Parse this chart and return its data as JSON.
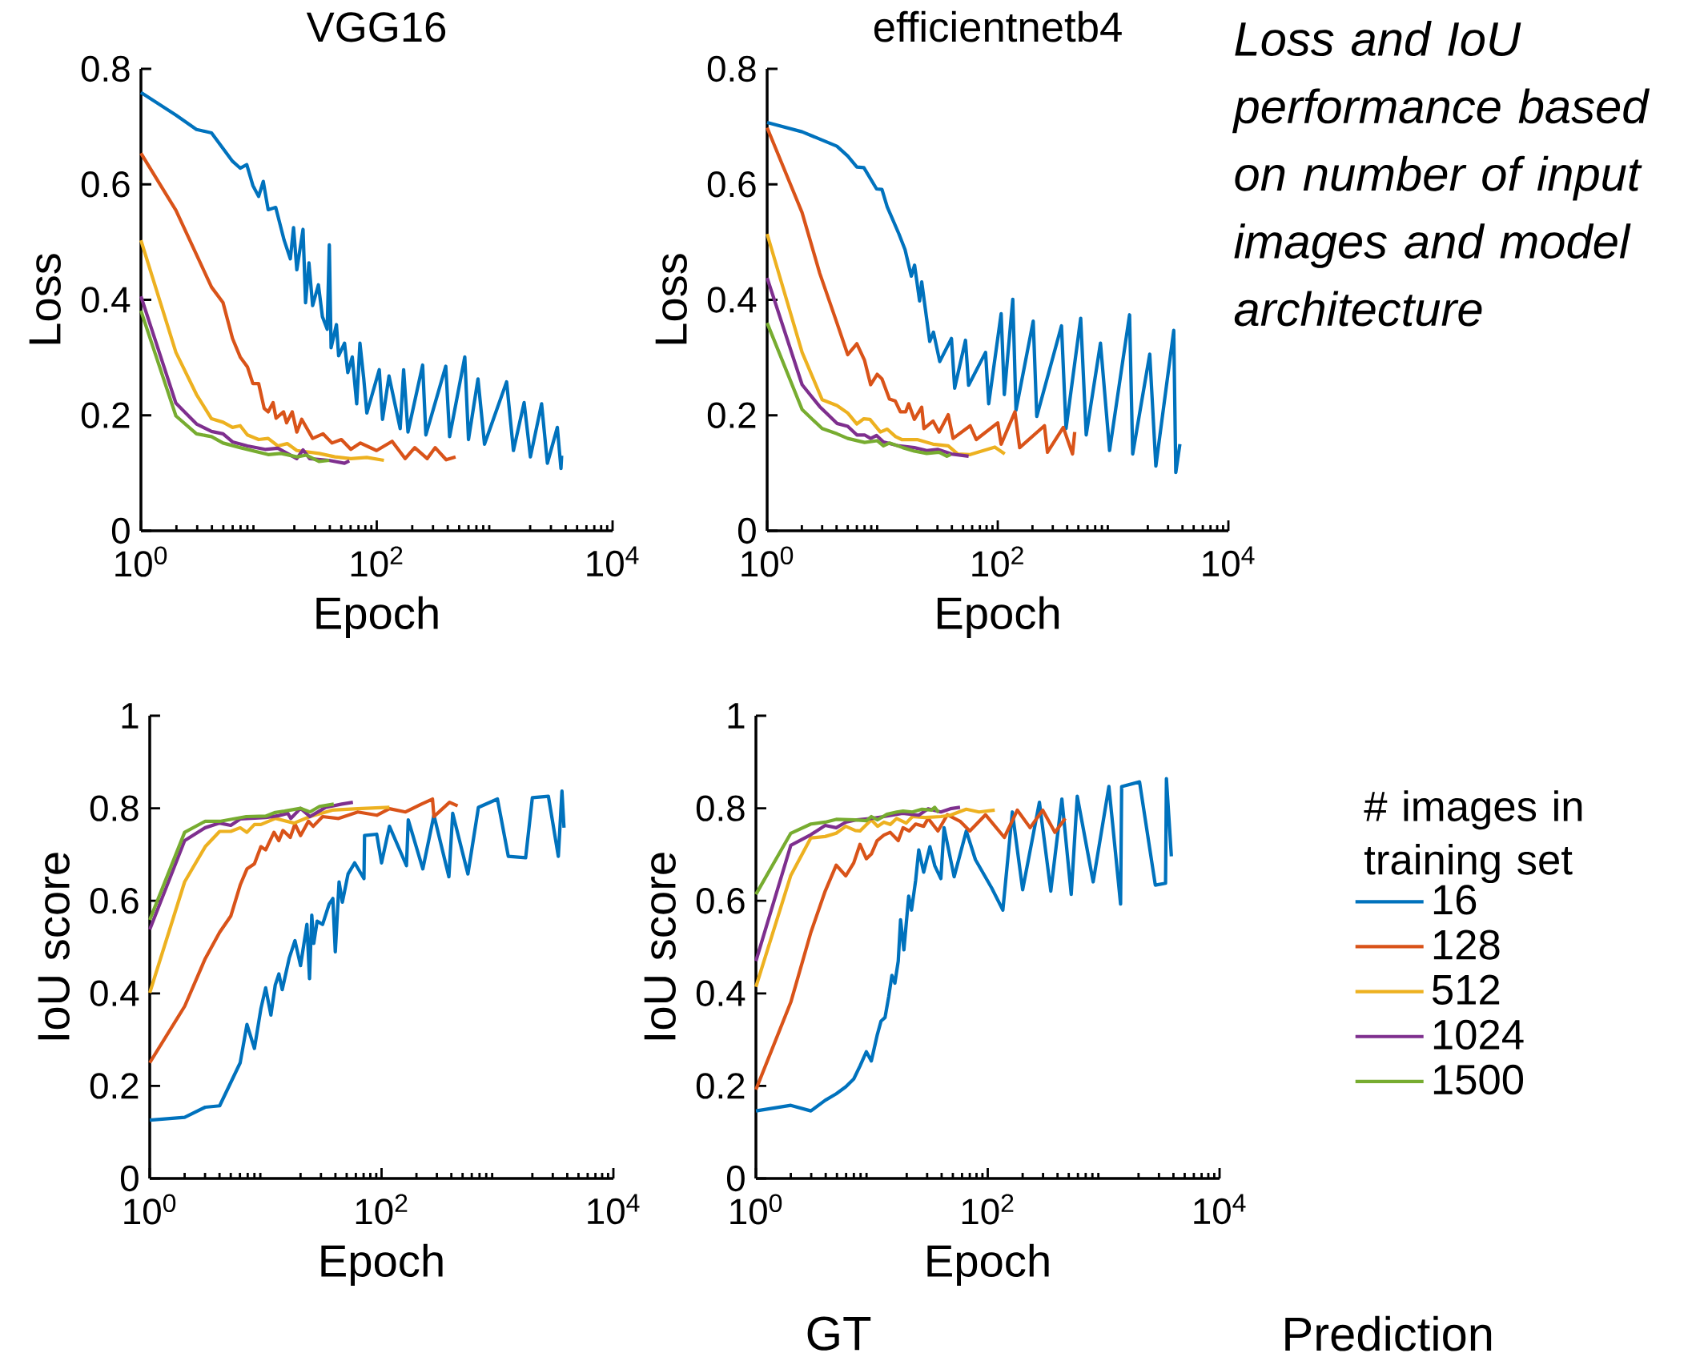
{
  "chart_data": [
    {
      "type": "line",
      "title": "VGG16",
      "xlabel": "Epoch",
      "ylabel": "Loss",
      "log": "x",
      "xlim": [
        1,
        10000
      ],
      "ylim": [
        0,
        0.8
      ],
      "xticks": [
        {
          "value": 1,
          "label": "10$^{0}$"
        },
        {
          "value": 100,
          "label": "10$^{2}$"
        },
        {
          "value": 10000,
          "label": "10$^{4}$"
        }
      ],
      "yticks": [
        0,
        0.2,
        0.4,
        0.6,
        0.8
      ],
      "series": [
        {
          "color": "#0072bd",
          "x": [
            1,
            1.98,
            2.96,
            3.97,
            5.98,
            6.95,
            7.9,
            8.9,
            9.96,
            10.9,
            12,
            13.9,
            16.4,
            18.5,
            19.7,
            21,
            23.7,
            24.9,
            26.6,
            28.6,
            32,
            34.6,
            38,
            39.6,
            41,
            45.5,
            47.5,
            53.3,
            56.8,
            62,
            67.6,
            72,
            77.6,
            82.4,
            105,
            112,
            127,
            158,
            169,
            184,
            245,
            261,
            385,
            415,
            558,
            600,
            722,
            820,
            1263,
            1443,
            1777,
            2010,
            2500,
            2800,
            3400,
            3650,
            3700
          ],
          "values": [
            0.759,
            0.72,
            0.695,
            0.689,
            0.64,
            0.628,
            0.634,
            0.598,
            0.579,
            0.605,
            0.556,
            0.56,
            0.503,
            0.471,
            0.525,
            0.452,
            0.522,
            0.395,
            0.464,
            0.39,
            0.426,
            0.371,
            0.349,
            0.495,
            0.317,
            0.357,
            0.303,
            0.325,
            0.274,
            0.301,
            0.22,
            0.325,
            0.263,
            0.204,
            0.279,
            0.193,
            0.268,
            0.177,
            0.279,
            0.171,
            0.287,
            0.166,
            0.285,
            0.163,
            0.301,
            0.158,
            0.263,
            0.15,
            0.258,
            0.139,
            0.222,
            0.128,
            0.22,
            0.117,
            0.179,
            0.108,
            0.13
          ]
        },
        {
          "color": "#d95319",
          "x": [
            1,
            1.98,
            3.97,
            4.97,
            5.98,
            6.95,
            8,
            8.9,
            9.96,
            11.1,
            12,
            13.2,
            14,
            16.2,
            17.2,
            19.2,
            21,
            23.1,
            28.6,
            35,
            41.7,
            50.1,
            60.3,
            72.7,
            99.6,
            135,
            174,
            210,
            268,
            313,
            388,
            466
          ],
          "values": [
            0.654,
            0.555,
            0.422,
            0.395,
            0.333,
            0.301,
            0.284,
            0.255,
            0.255,
            0.212,
            0.206,
            0.222,
            0.195,
            0.206,
            0.187,
            0.206,
            0.171,
            0.193,
            0.16,
            0.168,
            0.152,
            0.158,
            0.141,
            0.152,
            0.139,
            0.155,
            0.125,
            0.144,
            0.125,
            0.144,
            0.123,
            0.128
          ]
        },
        {
          "color": "#edb120",
          "x": [
            1,
            1.98,
            2.96,
            3.97,
            4.97,
            5.98,
            6.95,
            8,
            9.96,
            12,
            14.5,
            17.4,
            21,
            32.4,
            44.2,
            60.3,
            82.4,
            115
          ],
          "values": [
            0.503,
            0.309,
            0.236,
            0.194,
            0.188,
            0.179,
            0.182,
            0.166,
            0.158,
            0.16,
            0.147,
            0.151,
            0.139,
            0.134,
            0.128,
            0.125,
            0.127,
            0.122
          ]
        },
        {
          "color": "#7e2f8e",
          "x": [
            1,
            1.98,
            2.96,
            3.97,
            4.97,
            5.98,
            8,
            11.3,
            14.5,
            21,
            23.7,
            27,
            39.2,
            53.3,
            58.5
          ],
          "values": [
            0.406,
            0.221,
            0.185,
            0.172,
            0.168,
            0.154,
            0.147,
            0.141,
            0.143,
            0.125,
            0.14,
            0.125,
            0.122,
            0.117,
            0.121
          ]
        },
        {
          "color": "#77ac30",
          "x": [
            1,
            1.98,
            2.96,
            3.97,
            4.97,
            6.95,
            12,
            15.4,
            21,
            25.3,
            32.4,
            39.6
          ],
          "values": [
            0.381,
            0.199,
            0.168,
            0.163,
            0.152,
            0.144,
            0.132,
            0.134,
            0.128,
            0.131,
            0.12,
            0.122
          ]
        }
      ]
    },
    {
      "type": "line",
      "title": "efficientnetb4",
      "xlabel": "Epoch",
      "ylabel": "Loss",
      "log": "x",
      "xlim": [
        1,
        10000
      ],
      "ylim": [
        0,
        0.8
      ],
      "xticks": [
        {
          "value": 1,
          "label": "10$^{0}$"
        },
        {
          "value": 100,
          "label": "10$^{2}$"
        },
        {
          "value": 10000,
          "label": "10$^{4}$"
        }
      ],
      "yticks": [
        0,
        0.2,
        0.4,
        0.6,
        0.8
      ],
      "annotations": [
        "Loss and IoU performance based on number of input images and model architecture"
      ],
      "series": [
        {
          "color": "#0072bd",
          "x": [
            1,
            2.01,
            4.03,
            5,
            6,
            6.9,
            8.9,
            9.9,
            11,
            13.9,
            15.7,
            17.8,
            19,
            21,
            21.9,
            25.7,
            27.7,
            31.4,
            39.7,
            42.3,
            52.5,
            55.9,
            78.4,
            83.5,
            107,
            114,
            135,
            144,
            203,
            218,
            357,
            391,
            524,
            585,
            778,
            933,
            1390,
            1480,
            2080,
            2350,
            3360,
            3500,
            3800
          ],
          "values": [
            0.707,
            0.691,
            0.666,
            0.649,
            0.63,
            0.629,
            0.592,
            0.591,
            0.561,
            0.514,
            0.487,
            0.441,
            0.46,
            0.398,
            0.431,
            0.328,
            0.344,
            0.293,
            0.333,
            0.247,
            0.33,
            0.252,
            0.309,
            0.22,
            0.376,
            0.236,
            0.401,
            0.209,
            0.363,
            0.198,
            0.355,
            0.177,
            0.368,
            0.166,
            0.325,
            0.139,
            0.374,
            0.133,
            0.306,
            0.112,
            0.347,
            0.101,
            0.15
          ]
        },
        {
          "color": "#d95319",
          "x": [
            1,
            2.01,
            2.86,
            4.03,
            5,
            6,
            7,
            7.9,
            9,
            9.9,
            11.5,
            12.9,
            14.3,
            15.9,
            16.9,
            18.9,
            21.9,
            22.9,
            27.5,
            31,
            37.2,
            41,
            57.7,
            65.1,
            100,
            107,
            141,
            155,
            254,
            270,
            370,
            445,
            465
          ],
          "values": [
            0.698,
            0.551,
            0.446,
            0.36,
            0.305,
            0.324,
            0.295,
            0.253,
            0.271,
            0.263,
            0.228,
            0.225,
            0.206,
            0.206,
            0.22,
            0.193,
            0.214,
            0.177,
            0.19,
            0.171,
            0.201,
            0.16,
            0.182,
            0.158,
            0.187,
            0.15,
            0.206,
            0.144,
            0.182,
            0.136,
            0.179,
            0.133,
            0.171
          ]
        },
        {
          "color": "#edb120",
          "x": [
            1,
            2.01,
            3,
            4.03,
            5,
            6,
            6.9,
            7.8,
            9.6,
            11,
            13,
            14.7,
            20,
            27.5,
            37.2,
            45,
            57.7,
            94.4,
            115
          ],
          "values": [
            0.514,
            0.309,
            0.227,
            0.217,
            0.204,
            0.185,
            0.194,
            0.193,
            0.171,
            0.176,
            0.163,
            0.158,
            0.158,
            0.15,
            0.147,
            0.133,
            0.132,
            0.145,
            0.133
          ]
        },
        {
          "color": "#7e2f8e",
          "x": [
            1,
            2.01,
            2.86,
            4.03,
            5,
            6,
            7,
            7.9,
            8.9,
            10.2,
            13.9,
            18.9,
            24.2,
            30.1,
            39.7,
            55.9
          ],
          "values": [
            0.438,
            0.253,
            0.215,
            0.186,
            0.181,
            0.166,
            0.166,
            0.16,
            0.165,
            0.154,
            0.147,
            0.144,
            0.139,
            0.141,
            0.133,
            0.129
          ]
        },
        {
          "color": "#77ac30",
          "x": [
            1,
            2.01,
            3,
            4.03,
            5,
            7,
            9,
            10.2,
            11.5,
            15,
            18.9,
            24.2,
            31,
            36.2,
            39
          ],
          "values": [
            0.36,
            0.21,
            0.177,
            0.168,
            0.16,
            0.153,
            0.156,
            0.147,
            0.152,
            0.144,
            0.138,
            0.134,
            0.136,
            0.129,
            0.132
          ]
        }
      ]
    },
    {
      "type": "line",
      "xlabel": "Epoch",
      "ylabel": "IoU score",
      "log": "x",
      "xlim": [
        1,
        10000
      ],
      "ylim": [
        0,
        1
      ],
      "xticks": [
        {
          "value": 1,
          "label": "10$^{0}$"
        },
        {
          "value": 100,
          "label": "10$^{2}$"
        },
        {
          "value": 10000,
          "label": "10$^{4}$"
        }
      ],
      "yticks": [
        0,
        0.2,
        0.4,
        0.6,
        0.8,
        1
      ],
      "series": [
        {
          "color": "#0072bd",
          "x": [
            1,
            2,
            3.01,
            4.01,
            6.03,
            6.9,
            8,
            9.1,
            10,
            11.1,
            12.1,
            13,
            13.9,
            16,
            17.9,
            20,
            22.7,
            23.9,
            25,
            26,
            27.8,
            31,
            35.3,
            38,
            39.9,
            43,
            45.9,
            51.4,
            58.6,
            70.5,
            71.3,
            90.8,
            100,
            117,
            164,
            170,
            227,
            283,
            381,
            411,
            556,
            685,
            1000,
            1240,
            1750,
            2000,
            2750,
            3350,
            3600,
            3750
          ],
          "values": [
            0.126,
            0.132,
            0.154,
            0.157,
            0.25,
            0.333,
            0.281,
            0.367,
            0.412,
            0.353,
            0.418,
            0.442,
            0.408,
            0.477,
            0.514,
            0.46,
            0.549,
            0.432,
            0.569,
            0.508,
            0.556,
            0.549,
            0.593,
            0.605,
            0.49,
            0.641,
            0.597,
            0.658,
            0.682,
            0.648,
            0.741,
            0.744,
            0.682,
            0.761,
            0.676,
            0.775,
            0.669,
            0.785,
            0.652,
            0.789,
            0.658,
            0.802,
            0.82,
            0.696,
            0.693,
            0.823,
            0.826,
            0.696,
            0.837,
            0.758
          ]
        },
        {
          "color": "#d95319",
          "x": [
            1,
            2,
            3.01,
            4.01,
            5,
            6.03,
            6.9,
            8,
            9.1,
            10,
            11.8,
            13,
            14.1,
            16.3,
            17.9,
            20,
            23.4,
            25.7,
            31,
            42.6,
            62.4,
            91,
            117,
            161,
            221,
            275,
            283,
            386,
            453
          ],
          "values": [
            0.25,
            0.372,
            0.475,
            0.532,
            0.567,
            0.634,
            0.669,
            0.68,
            0.717,
            0.71,
            0.748,
            0.73,
            0.752,
            0.737,
            0.766,
            0.741,
            0.772,
            0.761,
            0.782,
            0.778,
            0.792,
            0.785,
            0.799,
            0.792,
            0.809,
            0.82,
            0.782,
            0.813,
            0.805
          ]
        },
        {
          "color": "#edb120",
          "x": [
            1,
            2,
            3.01,
            4.01,
            5,
            6.03,
            6.9,
            8,
            9.1,
            12.1,
            17.6,
            24.1,
            37.6,
            62.4,
            117
          ],
          "values": [
            0.401,
            0.641,
            0.717,
            0.75,
            0.75,
            0.758,
            0.748,
            0.765,
            0.765,
            0.778,
            0.768,
            0.782,
            0.796,
            0.799,
            0.802
          ]
        },
        {
          "color": "#7e2f8e",
          "x": [
            1,
            2,
            3.01,
            4.01,
            5,
            6.03,
            10,
            12.9,
            15.5,
            16.5,
            20,
            24.1,
            33,
            45.3,
            56.6
          ],
          "values": [
            0.538,
            0.73,
            0.758,
            0.768,
            0.763,
            0.777,
            0.78,
            0.784,
            0.789,
            0.778,
            0.8,
            0.782,
            0.802,
            0.809,
            0.813
          ]
        },
        {
          "color": "#77ac30",
          "x": [
            1,
            2,
            3.01,
            4.1,
            6.8,
            10,
            12.1,
            14.6,
            20,
            24.1,
            29.2,
            38.7
          ],
          "values": [
            0.559,
            0.748,
            0.772,
            0.772,
            0.782,
            0.783,
            0.791,
            0.794,
            0.8,
            0.792,
            0.804,
            0.809
          ]
        }
      ]
    },
    {
      "type": "line",
      "xlabel": "Epoch",
      "ylabel": "IoU score",
      "log": "x",
      "xlim": [
        1,
        10000
      ],
      "ylim": [
        0,
        1
      ],
      "xticks": [
        {
          "value": 1,
          "label": "10$^{0}$"
        },
        {
          "value": 100,
          "label": "10$^{2}$"
        },
        {
          "value": 10000,
          "label": "10$^{4}$"
        }
      ],
      "yticks": [
        0,
        0.2,
        0.4,
        0.6,
        0.8,
        1
      ],
      "legend": "right",
      "legend_title": "# images in training set",
      "annotations": [
        "GT",
        "Prediction"
      ],
      "series": [
        {
          "name": "16",
          "color": "#0072bd",
          "x": [
            1,
            2,
            2.98,
            3.96,
            4.93,
            5.96,
            6.98,
            7.9,
            8.97,
            9.9,
            11.1,
            12,
            13,
            14,
            14.9,
            15.8,
            16.9,
            17.7,
            18.9,
            20.8,
            22,
            23.9,
            25.4,
            28,
            31.7,
            34.9,
            39.4,
            42,
            51.3,
            65.3,
            78.3,
            108,
            135,
            163,
            200,
            279,
            350,
            436,
            525,
            592,
            812,
            1110,
            1400,
            1430,
            2040,
            2790,
            3420,
            3480,
            3840
          ],
          "values": [
            0.146,
            0.158,
            0.146,
            0.169,
            0.183,
            0.198,
            0.215,
            0.243,
            0.274,
            0.254,
            0.309,
            0.34,
            0.348,
            0.394,
            0.439,
            0.422,
            0.47,
            0.559,
            0.494,
            0.61,
            0.58,
            0.645,
            0.71,
            0.662,
            0.717,
            0.676,
            0.648,
            0.758,
            0.652,
            0.751,
            0.689,
            0.628,
            0.58,
            0.792,
            0.624,
            0.813,
            0.621,
            0.82,
            0.614,
            0.826,
            0.641,
            0.847,
            0.593,
            0.847,
            0.857,
            0.634,
            0.638,
            0.864,
            0.696
          ]
        },
        {
          "name": "128",
          "color": "#d95319",
          "x": [
            1,
            2,
            2.98,
            3.96,
            4.93,
            5.96,
            6.98,
            7.9,
            8.97,
            9.9,
            11.1,
            12.7,
            14.4,
            16.9,
            18.6,
            21,
            23.9,
            28,
            30.6,
            37.2,
            44.8,
            57.7,
            70,
            95.6,
            139,
            180,
            232,
            298,
            380,
            466
          ],
          "values": [
            0.192,
            0.381,
            0.532,
            0.621,
            0.677,
            0.654,
            0.682,
            0.722,
            0.691,
            0.701,
            0.73,
            0.742,
            0.748,
            0.73,
            0.758,
            0.751,
            0.766,
            0.761,
            0.778,
            0.751,
            0.786,
            0.772,
            0.751,
            0.786,
            0.737,
            0.796,
            0.758,
            0.796,
            0.748,
            0.778
          ]
        },
        {
          "name": "512",
          "color": "#edb120",
          "x": [
            1,
            2,
            2.98,
            3.96,
            4.93,
            5.96,
            7.2,
            7.9,
            9.9,
            11.2,
            12.7,
            14.4,
            16.4,
            19.8,
            22.4,
            28.8,
            39.4,
            47.6,
            65.3,
            84.1,
            115
          ],
          "values": [
            0.414,
            0.655,
            0.736,
            0.739,
            0.746,
            0.761,
            0.752,
            0.751,
            0.775,
            0.761,
            0.77,
            0.765,
            0.778,
            0.768,
            0.782,
            0.78,
            0.782,
            0.785,
            0.798,
            0.792,
            0.796
          ]
        },
        {
          "name": "1024",
          "color": "#7e2f8e",
          "x": [
            1,
            2,
            2.98,
            3.96,
            4.93,
            5.96,
            7.4,
            9.9,
            12.7,
            18.4,
            25.4,
            30.6,
            39.4,
            47.6,
            57.7
          ],
          "values": [
            0.47,
            0.72,
            0.743,
            0.763,
            0.758,
            0.77,
            0.775,
            0.778,
            0.782,
            0.789,
            0.785,
            0.799,
            0.792,
            0.799,
            0.802
          ]
        },
        {
          "name": "1500",
          "color": "#77ac30",
          "x": [
            1,
            2,
            2.98,
            3.96,
            4.93,
            7.2,
            8.97,
            9.9,
            11.2,
            13.5,
            16.4,
            18.6,
            22.4,
            27.1,
            32.7,
            34.9,
            37.6
          ],
          "values": [
            0.614,
            0.746,
            0.766,
            0.77,
            0.776,
            0.775,
            0.773,
            0.782,
            0.775,
            0.787,
            0.792,
            0.794,
            0.792,
            0.798,
            0.796,
            0.802,
            0.791
          ]
        }
      ]
    }
  ]
}
